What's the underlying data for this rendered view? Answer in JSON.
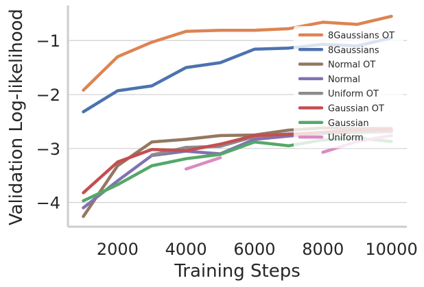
{
  "chart_data": {
    "type": "line",
    "xlabel": "Training Steps",
    "ylabel": "Validation Log-likelihood",
    "xlim": [
      550,
      10450
    ],
    "ylim": [
      -4.45,
      -0.35
    ],
    "xticks": [
      2000,
      4000,
      6000,
      8000,
      10000
    ],
    "xtick_labels": [
      "2000",
      "4000",
      "6000",
      "8000",
      "10000"
    ],
    "yticks": [
      -4,
      -3,
      -2,
      -1
    ],
    "ytick_labels": [
      "−4",
      "−3",
      "−2",
      "−1"
    ],
    "grid": "y",
    "legend_position": "top-right",
    "series": [
      {
        "name": "8Gaussians OT",
        "color": "#dd8452",
        "x": [
          1000,
          2000,
          3000,
          4000,
          5000,
          6000,
          7000,
          8000,
          9000,
          10000
        ],
        "y": [
          -1.92,
          -1.3,
          -1.03,
          -0.83,
          -0.81,
          -0.81,
          -0.78,
          -0.66,
          -0.7,
          -0.55
        ]
      },
      {
        "name": "8Gaussians",
        "color": "#4c72b0",
        "x": [
          1000,
          2000,
          3000,
          4000,
          5000,
          6000,
          7000,
          8000,
          9000,
          10000
        ],
        "y": [
          -2.32,
          -1.93,
          -1.84,
          -1.5,
          -1.41,
          -1.16,
          -1.14,
          -1.07,
          -1.1,
          -0.95
        ]
      },
      {
        "name": "Normal OT",
        "color": "#937860",
        "x": [
          1000,
          2000,
          3000,
          4000,
          5000,
          6000,
          7000,
          8000,
          9000,
          10000
        ],
        "y": [
          -4.26,
          -3.32,
          -2.88,
          -2.83,
          -2.76,
          -2.75,
          -2.66,
          -2.62,
          -2.63,
          -2.63
        ]
      },
      {
        "name": "Normal",
        "color": "#8172b3",
        "x": [
          1000,
          2000,
          3000,
          4000,
          5000,
          6000,
          7000,
          8000,
          9000,
          10000
        ],
        "y": [
          -4.1,
          -3.6,
          -3.13,
          -3.05,
          -3.1,
          -2.83,
          -2.77,
          -2.72,
          -2.7,
          -2.68
        ]
      },
      {
        "name": "Uniform OT",
        "color": "#8c8c8c",
        "x": [
          3000,
          4000,
          5000,
          6000,
          7000,
          8000,
          9000,
          10000
        ],
        "y": [
          -3.12,
          -2.98,
          -2.96,
          -2.78,
          -2.73,
          -2.72,
          -2.7,
          -2.69
        ]
      },
      {
        "name": "Gaussian OT",
        "color": "#c44e52",
        "x": [
          1000,
          2000,
          3000,
          4000,
          5000,
          6000,
          7000,
          8000,
          9000,
          10000
        ],
        "y": [
          -3.82,
          -3.25,
          -3.02,
          -3.04,
          -2.92,
          -2.76,
          -2.74,
          -2.7,
          -2.66,
          -2.65
        ]
      },
      {
        "name": "Gaussian",
        "color": "#55a868",
        "x": [
          1000,
          2000,
          3000,
          4000,
          5000,
          6000,
          7000,
          8000,
          9000,
          10000
        ],
        "y": [
          -3.97,
          -3.67,
          -3.32,
          -3.19,
          -3.11,
          -2.88,
          -2.95,
          -2.84,
          -2.81,
          -2.87
        ]
      },
      {
        "name": "Uniform",
        "color": "#da8bc3",
        "x": [
          4000,
          5000,
          null,
          8000,
          9000,
          10000
        ],
        "y": [
          -3.38,
          -3.17,
          null,
          -3.07,
          -2.87,
          -2.76
        ]
      }
    ]
  }
}
